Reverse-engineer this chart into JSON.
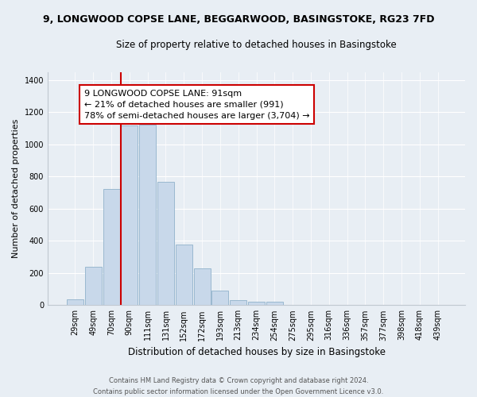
{
  "title": "9, LONGWOOD COPSE LANE, BEGGARWOOD, BASINGSTOKE, RG23 7FD",
  "subtitle": "Size of property relative to detached houses in Basingstoke",
  "xlabel": "Distribution of detached houses by size in Basingstoke",
  "ylabel": "Number of detached properties",
  "bin_labels": [
    "29sqm",
    "49sqm",
    "70sqm",
    "90sqm",
    "111sqm",
    "131sqm",
    "152sqm",
    "172sqm",
    "193sqm",
    "213sqm",
    "234sqm",
    "254sqm",
    "275sqm",
    "295sqm",
    "316sqm",
    "336sqm",
    "357sqm",
    "377sqm",
    "398sqm",
    "418sqm",
    "439sqm"
  ],
  "bin_values": [
    35,
    240,
    720,
    1115,
    1120,
    765,
    375,
    230,
    90,
    30,
    20,
    20,
    0,
    0,
    0,
    0,
    0,
    0,
    0,
    0,
    0
  ],
  "bar_color": "#c8d8ea",
  "bar_edge_color": "#9ab8d0",
  "property_line_color": "#cc0000",
  "ylim": [
    0,
    1450
  ],
  "yticks": [
    0,
    200,
    400,
    600,
    800,
    1000,
    1200,
    1400
  ],
  "annotation_text_line1": "9 LONGWOOD COPSE LANE: 91sqm",
  "annotation_text_line2": "← 21% of detached houses are smaller (991)",
  "annotation_text_line3": "78% of semi-detached houses are larger (3,704) →",
  "annotation_box_facecolor": "#ffffff",
  "annotation_box_edgecolor": "#cc0000",
  "footer_line1": "Contains HM Land Registry data © Crown copyright and database right 2024.",
  "footer_line2": "Contains public sector information licensed under the Open Government Licence v3.0.",
  "background_color": "#e8eef4",
  "grid_color": "#ffffff",
  "spine_color": "#c0c8d0"
}
